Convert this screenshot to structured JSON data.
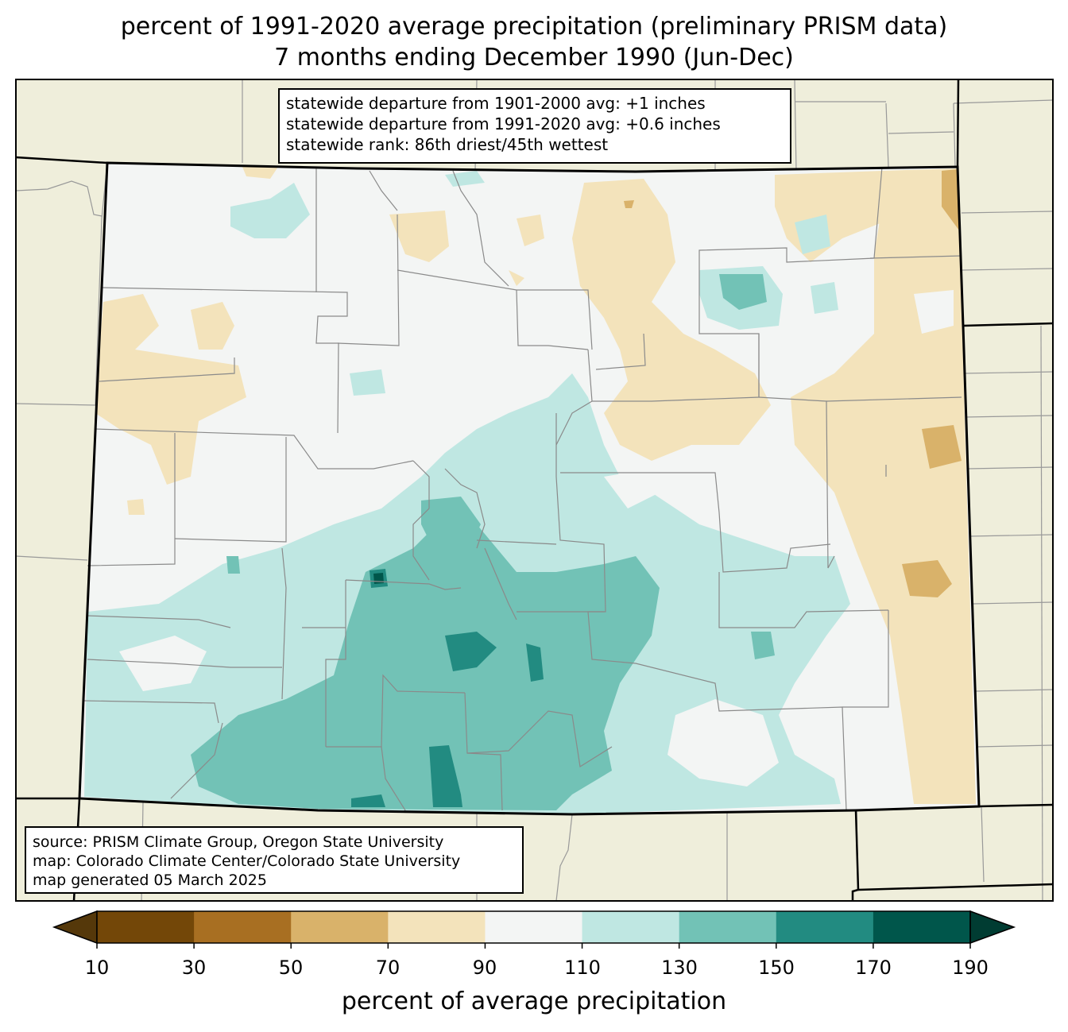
{
  "title": {
    "line1": "percent of 1991-2020 average precipitation (preliminary PRISM data)",
    "line2": "7 months ending December 1990 (Jun-Dec)"
  },
  "stats": {
    "line1": "statewide departure from 1901-2000 avg: +1 inches",
    "line2": "statewide departure from 1991-2020 avg: +0.6 inches",
    "line3": "statewide rank: 86th driest/45th wettest"
  },
  "source": {
    "line1": "source: PRISM Climate Group, Oregon State University",
    "line2": "map: Colorado Climate Center/Colorado State University",
    "line3": "map generated 05 March 2025"
  },
  "colorbar": {
    "label": "percent of average precipitation",
    "ticks": [
      "10",
      "30",
      "50",
      "70",
      "90",
      "110",
      "130",
      "150",
      "170",
      "190"
    ],
    "colors": [
      "#734708",
      "#a86f22",
      "#d9b26a",
      "#f3e3bb",
      "#f3f5f4",
      "#bfe7e2",
      "#72c2b6",
      "#228b81",
      "#00564b"
    ],
    "under_color": "#55380a",
    "over_color": "#003c32"
  },
  "colors": {
    "background_land": "#efeedb",
    "state_fill": "#f3f5f4"
  }
}
